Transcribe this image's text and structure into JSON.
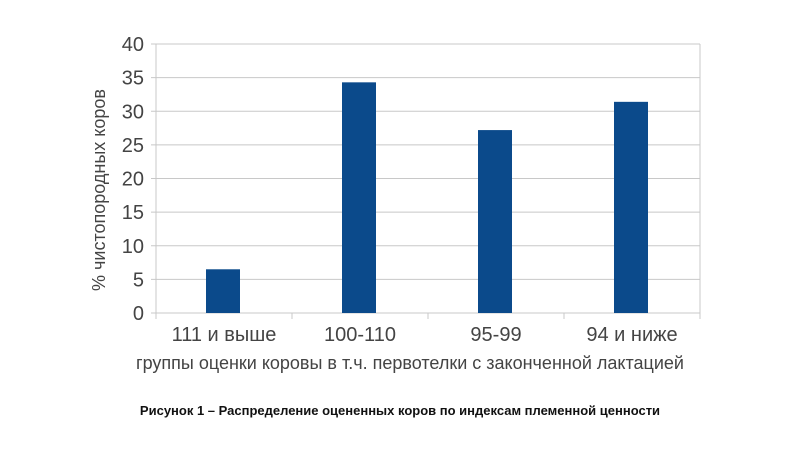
{
  "chart_data": {
    "type": "bar",
    "categories": [
      "111 и выше",
      "100-110",
      "95-99",
      "94 и ниже"
    ],
    "values": [
      6.5,
      34.3,
      27.2,
      31.4
    ],
    "xlabel": "группы оценки коровы в т.ч. первотелки с законченной лактацией",
    "ylabel": "% чистопородных коров",
    "ylim": [
      0,
      40
    ],
    "yticks": [
      0,
      5,
      10,
      15,
      20,
      25,
      30,
      35,
      40
    ],
    "grid": true,
    "legend": "none",
    "bar_color": "#0b4a8b"
  },
  "caption": "Рисунок 1 – Распределение оцененных коров по индексам племенной ценности"
}
